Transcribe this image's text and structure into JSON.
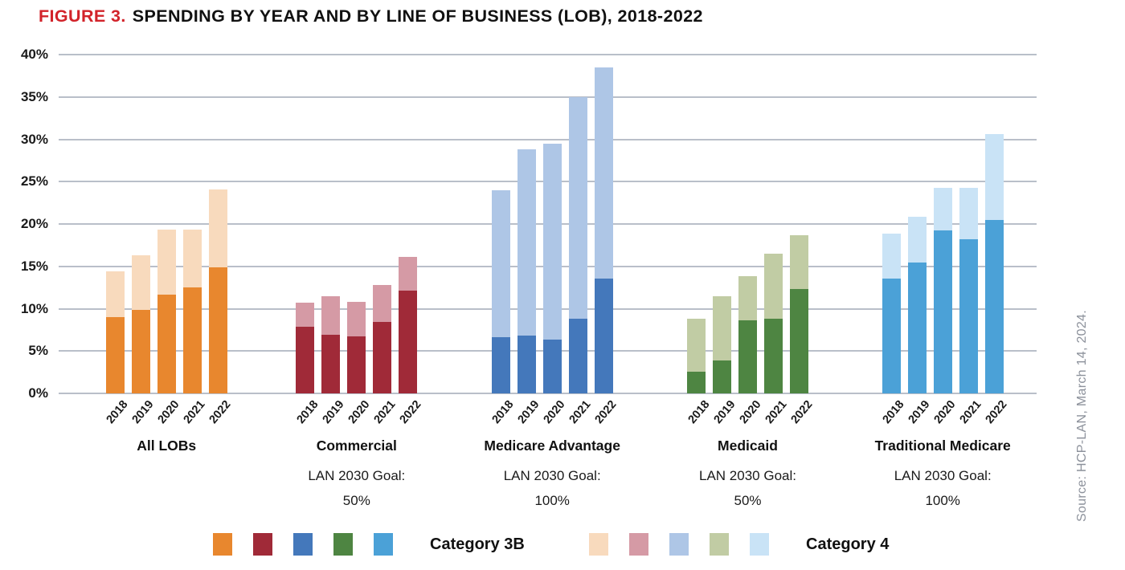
{
  "title": {
    "prefix": "FIGURE 3.",
    "text": "SPENDING BY YEAR AND BY LINE OF BUSINESS (LOB), 2018-2022"
  },
  "source": "Source: HCP-LAN, March 14, 2024.",
  "legend": {
    "category_3b_label": "Category 3B",
    "category_4_label": "Category 4",
    "solid_swatches": [
      "#E8872E",
      "#A02A38",
      "#4478BB",
      "#4E8542",
      "#4BA1D7"
    ],
    "light_swatches": [
      "#F8DABD",
      "#D59AA5",
      "#AEC6E6",
      "#C1CCA4",
      "#C9E3F6"
    ]
  },
  "chart_data": {
    "type": "bar",
    "stacked": true,
    "title": "FIGURE 3. SPENDING BY YEAR AND BY LINE OF BUSINESS (LOB), 2018-2022",
    "categories": [
      "2018",
      "2019",
      "2020",
      "2021",
      "2022"
    ],
    "ylim": [
      0,
      40
    ],
    "ytick_step": 5,
    "ytick_suffix": "%",
    "grid": true,
    "legend_position": "bottom",
    "series_names": [
      "Category 3B",
      "Category 4"
    ],
    "groups": [
      {
        "label": "All LOBs",
        "goal_label": null,
        "goal_value": null,
        "colors": {
          "category_3b": "#E8872E",
          "category_4": "#F8DABD"
        },
        "category_3b": [
          9.0,
          9.9,
          11.7,
          12.5,
          14.9
        ],
        "category_4": [
          5.4,
          6.4,
          7.6,
          6.8,
          9.2
        ],
        "totals": [
          14.4,
          16.3,
          19.3,
          19.3,
          24.1
        ]
      },
      {
        "label": "Commercial",
        "goal_label": "LAN 2030 Goal:",
        "goal_value": "50%",
        "colors": {
          "category_3b": "#A02A38",
          "category_4": "#D59AA5"
        },
        "category_3b": [
          7.9,
          6.9,
          6.7,
          8.4,
          12.1
        ],
        "category_4": [
          2.8,
          4.6,
          4.1,
          4.4,
          4.0
        ],
        "totals": [
          10.7,
          11.5,
          10.8,
          12.8,
          16.1
        ]
      },
      {
        "label": "Medicare Advantage",
        "goal_label": "LAN 2030 Goal:",
        "goal_value": "100%",
        "colors": {
          "category_3b": "#4478BB",
          "category_4": "#AEC6E6"
        },
        "category_3b": [
          6.6,
          6.8,
          6.4,
          8.8,
          13.6
        ],
        "category_4": [
          17.4,
          22.0,
          23.1,
          26.2,
          24.9
        ],
        "totals": [
          24.0,
          28.8,
          29.5,
          35.0,
          38.5
        ]
      },
      {
        "label": "Medicaid",
        "goal_label": "LAN 2030 Goal:",
        "goal_value": "50%",
        "colors": {
          "category_3b": "#4E8542",
          "category_4": "#C1CCA4"
        },
        "category_3b": [
          2.6,
          3.9,
          8.6,
          8.8,
          12.3
        ],
        "category_4": [
          6.2,
          7.6,
          5.2,
          7.7,
          6.4
        ],
        "totals": [
          8.8,
          11.5,
          13.8,
          16.5,
          18.7
        ]
      },
      {
        "label": "Traditional Medicare",
        "goal_label": "LAN 2030 Goal:",
        "goal_value": "100%",
        "colors": {
          "category_3b": "#4BA1D7",
          "category_4": "#C9E3F6"
        },
        "category_3b": [
          13.6,
          15.5,
          19.2,
          18.2,
          20.5
        ],
        "category_4": [
          5.3,
          5.4,
          5.1,
          6.1,
          10.1
        ],
        "totals": [
          18.9,
          20.9,
          24.3,
          24.3,
          30.6
        ]
      }
    ]
  }
}
